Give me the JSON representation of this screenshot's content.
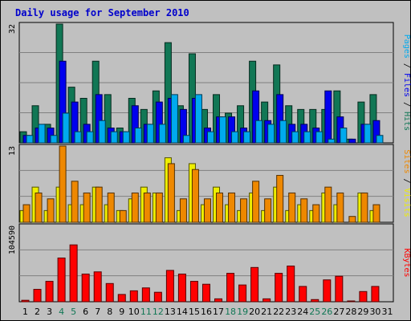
{
  "chart_data": {
    "type": "bar",
    "title": "Daily usage for September 2010",
    "categories": [
      "1",
      "2",
      "3",
      "4",
      "5",
      "6",
      "7",
      "8",
      "9",
      "10",
      "11",
      "12",
      "13",
      "14",
      "15",
      "16",
      "17",
      "18",
      "19",
      "20",
      "21",
      "22",
      "23",
      "24",
      "25",
      "26",
      "27",
      "28",
      "29",
      "30",
      "31"
    ],
    "weekend_days": [
      4,
      5,
      11,
      12,
      18,
      19,
      25,
      26
    ],
    "panels": [
      {
        "name": "hits_files_pages",
        "max_label": "32",
        "ymax": 32,
        "legend": [
          "Pages",
          "Files",
          "Hits"
        ],
        "series": [
          {
            "name": "Hits",
            "color": "#117755",
            "values": [
              3,
              10,
              5,
              32,
              15,
              12,
              22,
              13,
              4,
              12,
              9,
              14,
              27,
              10,
              24,
              9,
              13,
              8,
              10,
              22,
              11,
              21,
              10,
              9,
              9,
              9,
              14,
              1,
              11,
              13,
              0
            ]
          },
          {
            "name": "Files",
            "color": "#0000ee",
            "values": [
              2,
              4,
              4,
              22,
              11,
              5,
              13,
              4,
              3,
              10,
              5,
              11,
              12,
              9,
              12,
              4,
              7,
              7,
              4,
              14,
              6,
              13,
              5,
              5,
              4,
              14,
              7,
              1,
              5,
              6,
              0
            ]
          },
          {
            "name": "Pages",
            "color": "#00aaee",
            "values": [
              2,
              5,
              2,
              8,
              3,
              3,
              6,
              3,
              3,
              4,
              5,
              5,
              13,
              2,
              13,
              3,
              7,
              3,
              3,
              6,
              5,
              6,
              3,
              3,
              3,
              1,
              4,
              0,
              5,
              2,
              0
            ]
          }
        ]
      },
      {
        "name": "visits_sites",
        "max_label": "13",
        "ymax": 13,
        "legend": [
          "Sites",
          "Visits"
        ],
        "series": [
          {
            "name": "Visits",
            "color": "#eeee00",
            "values": [
              2,
              6,
              2,
              6,
              3,
              3,
              6,
              3,
              2,
              4,
              6,
              5,
              11,
              2,
              10,
              3,
              6,
              3,
              2,
              5,
              2,
              6,
              2,
              3,
              2,
              5,
              3,
              0,
              5,
              2,
              0
            ]
          },
          {
            "name": "Sites",
            "color": "#ee8800",
            "values": [
              3,
              5,
              4,
              13,
              7,
              5,
              6,
              5,
              2,
              5,
              5,
              5,
              10,
              4,
              9,
              4,
              5,
              5,
              4,
              7,
              4,
              8,
              5,
              4,
              3,
              6,
              5,
              1,
              5,
              3,
              0
            ]
          }
        ]
      },
      {
        "name": "kbytes",
        "max_label": "104590",
        "ymax": 104590,
        "legend": [
          "KBytes"
        ],
        "series": [
          {
            "name": "KBytes",
            "color": "#ff0000",
            "values": [
              2000,
              17000,
              28000,
              60000,
              78000,
              38000,
              41000,
              25000,
              10000,
              15000,
              19000,
              13000,
              43000,
              38000,
              28000,
              24000,
              4000,
              39000,
              23000,
              47000,
              4000,
              39000,
              49000,
              21000,
              3000,
              30000,
              35000,
              1000,
              14000,
              21000,
              0
            ]
          }
        ]
      }
    ]
  }
}
